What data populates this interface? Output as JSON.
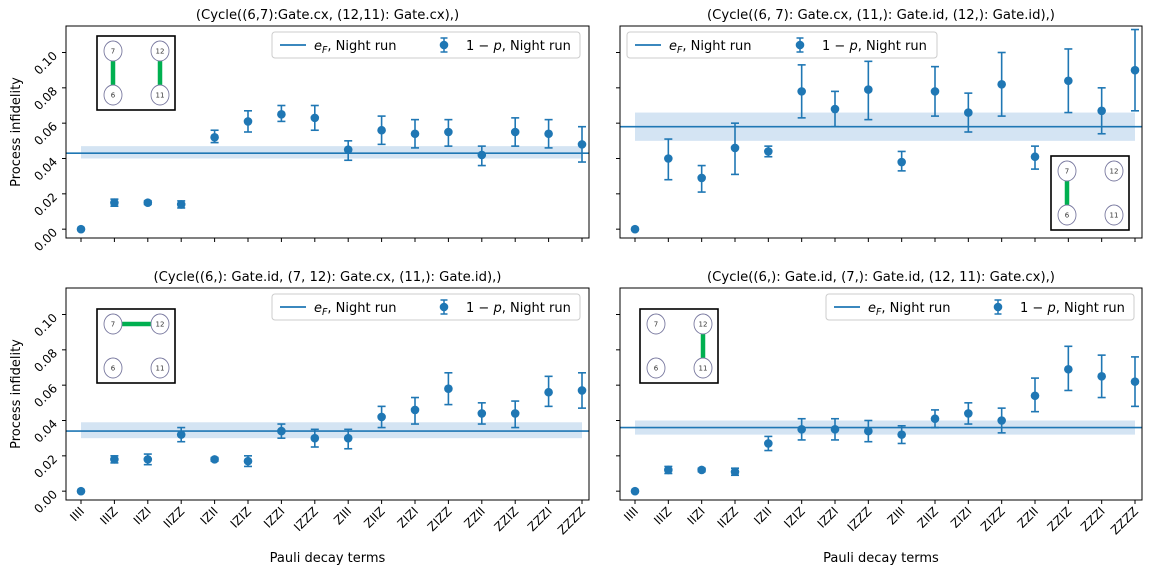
{
  "figure": {
    "xlabel": "Pauli decay terms",
    "ylabel": "Process infidelity",
    "categories": [
      "IIII",
      "IIIZ",
      "IIZI",
      "IIZZ",
      "IZII",
      "IZIZ",
      "IZZI",
      "IZZZ",
      "ZIII",
      "ZIIZ",
      "ZIZI",
      "ZIZZ",
      "ZZII",
      "ZZIZ",
      "ZZZI",
      "ZZZZ"
    ],
    "yticks": [
      "0.00",
      "0.02",
      "0.04",
      "0.06",
      "0.08",
      "0.10"
    ],
    "legend_line": "e_F, Night run",
    "legend_marker": "1 − p, Night run",
    "colors": {
      "series": "#1f77b4",
      "band": "#c6dbef",
      "edge": "#00b050"
    }
  },
  "chart_data": [
    {
      "type": "scatter",
      "title": "(Cycle((6,7):Gate.cx, (12,11): Gate.cx),)",
      "ylim": [
        -0.005,
        0.115
      ],
      "e_F": 0.043,
      "e_F_band": [
        0.04,
        0.047
      ],
      "series": [
        {
          "name": "1 − p, Night run",
          "values": [
            0.0,
            0.015,
            0.015,
            0.014,
            0.052,
            0.061,
            0.065,
            0.063,
            0.045,
            0.056,
            0.054,
            0.055,
            0.042,
            0.055,
            0.054,
            0.048
          ],
          "err_low": [
            0.0,
            0.002,
            0.001,
            0.002,
            0.003,
            0.006,
            0.004,
            0.007,
            0.006,
            0.008,
            0.008,
            0.008,
            0.006,
            0.008,
            0.008,
            0.01
          ],
          "err_high": [
            0.0,
            0.002,
            0.001,
            0.002,
            0.004,
            0.006,
            0.005,
            0.007,
            0.005,
            0.008,
            0.008,
            0.007,
            0.005,
            0.008,
            0.008,
            0.01
          ]
        }
      ],
      "legend": "top-right",
      "inset": {
        "placement": "top-left",
        "qubits": [
          "7",
          "12",
          "6",
          "11"
        ],
        "edges": [
          [
            "7",
            "6"
          ],
          [
            "12",
            "11"
          ]
        ]
      }
    },
    {
      "type": "scatter",
      "title": "(Cycle((6, 7): Gate.cx, (11,): Gate.id, (12,): Gate.id),)",
      "ylim": [
        -0.005,
        0.115
      ],
      "e_F": 0.058,
      "e_F_band": [
        0.05,
        0.066
      ],
      "series": [
        {
          "name": "1 − p, Night run",
          "values": [
            0.0,
            0.04,
            0.029,
            0.046,
            0.044,
            0.078,
            0.068,
            0.079,
            0.038,
            0.078,
            0.066,
            0.082,
            0.041,
            0.084,
            0.067,
            0.09
          ],
          "err_low": [
            0.0,
            0.012,
            0.008,
            0.015,
            0.003,
            0.015,
            0.01,
            0.017,
            0.005,
            0.014,
            0.011,
            0.018,
            0.007,
            0.018,
            0.013,
            0.023
          ],
          "err_high": [
            0.0,
            0.011,
            0.007,
            0.014,
            0.003,
            0.015,
            0.01,
            0.016,
            0.006,
            0.014,
            0.011,
            0.018,
            0.006,
            0.018,
            0.013,
            0.023
          ]
        }
      ],
      "legend": "top",
      "inset": {
        "placement": "bottom-right",
        "qubits": [
          "7",
          "12",
          "6",
          "11"
        ],
        "edges": [
          [
            "7",
            "6"
          ]
        ]
      }
    },
    {
      "type": "scatter",
      "title": "(Cycle((6,): Gate.id, (7, 12): Gate.cx, (11,): Gate.id),)",
      "ylim": [
        -0.005,
        0.115
      ],
      "e_F": 0.034,
      "e_F_band": [
        0.03,
        0.039
      ],
      "series": [
        {
          "name": "1 − p, Night run",
          "values": [
            0.0,
            0.018,
            0.018,
            0.032,
            0.018,
            0.017,
            0.034,
            0.03,
            0.03,
            0.042,
            0.046,
            0.058,
            0.044,
            0.044,
            0.056,
            0.057
          ],
          "err_low": [
            0.0,
            0.002,
            0.003,
            0.004,
            0.001,
            0.003,
            0.004,
            0.005,
            0.006,
            0.006,
            0.008,
            0.009,
            0.006,
            0.008,
            0.008,
            0.01
          ],
          "err_high": [
            0.0,
            0.002,
            0.003,
            0.004,
            0.001,
            0.003,
            0.004,
            0.005,
            0.005,
            0.006,
            0.007,
            0.009,
            0.006,
            0.007,
            0.009,
            0.01
          ]
        }
      ],
      "legend": "top-right",
      "inset": {
        "placement": "top-left",
        "qubits": [
          "7",
          "12",
          "6",
          "11"
        ],
        "edges": [
          [
            "7",
            "12"
          ]
        ]
      }
    },
    {
      "type": "scatter",
      "title": "(Cycle((6,): Gate.id, (7,): Gate.id, (12, 11): Gate.cx),)",
      "ylim": [
        -0.005,
        0.115
      ],
      "e_F": 0.036,
      "e_F_band": [
        0.032,
        0.04
      ],
      "series": [
        {
          "name": "1 − p, Night run",
          "values": [
            0.0,
            0.012,
            0.012,
            0.011,
            0.027,
            0.035,
            0.035,
            0.034,
            0.032,
            0.041,
            0.044,
            0.04,
            0.054,
            0.069,
            0.065,
            0.062
          ],
          "err_low": [
            0.0,
            0.002,
            0.001,
            0.002,
            0.004,
            0.006,
            0.006,
            0.006,
            0.005,
            0.005,
            0.006,
            0.007,
            0.009,
            0.012,
            0.012,
            0.014
          ],
          "err_high": [
            0.0,
            0.002,
            0.001,
            0.002,
            0.004,
            0.006,
            0.006,
            0.006,
            0.005,
            0.005,
            0.006,
            0.007,
            0.01,
            0.013,
            0.012,
            0.014
          ]
        }
      ],
      "legend": "top-right",
      "inset": {
        "placement": "top-left",
        "qubits": [
          "7",
          "12",
          "6",
          "11"
        ],
        "edges": [
          [
            "12",
            "11"
          ]
        ]
      }
    }
  ]
}
